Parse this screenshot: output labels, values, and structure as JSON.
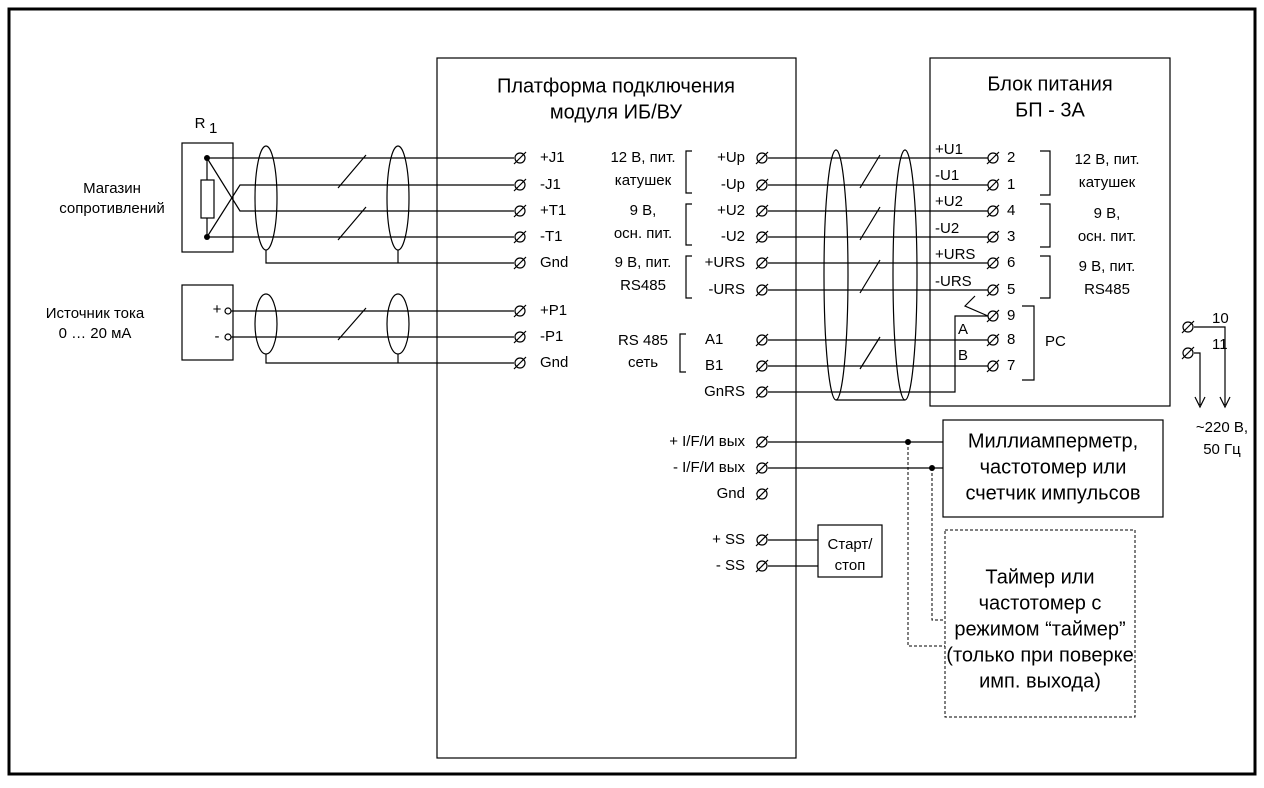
{
  "resistor_box": {
    "label": "R",
    "label_sub": "1",
    "caption": [
      "Магазин",
      "сопротивлений"
    ]
  },
  "current_source": {
    "caption": [
      "Источник тока",
      "0 … 20 мА"
    ],
    "plus": "+",
    "minus": "-"
  },
  "platform": {
    "title": [
      "Платформа подключения",
      "модуля ИБ/ВУ"
    ],
    "left_terminals": [
      "+J1",
      "-J1",
      "+T1",
      "-T1",
      "Gnd",
      "+P1",
      "-P1",
      "Gnd"
    ],
    "right_terminals": [
      "+Up",
      "-Up",
      "+U2",
      "-U2",
      "+URS",
      "-URS",
      "A1",
      "B1",
      "GnRS",
      "+ I/F/И вых",
      "- I/F/И вых",
      "Gnd",
      "+ SS",
      "- SS"
    ],
    "groups": [
      [
        "12 В, пит.",
        "катушек"
      ],
      [
        "9 В,",
        "осн. пит."
      ],
      [
        "9 В, пит.",
        "RS485"
      ],
      [
        "RS 485",
        "сеть"
      ]
    ]
  },
  "start_stop": [
    "Старт/",
    "стоп"
  ],
  "power_unit": {
    "title": [
      "Блок питания",
      "БП - 3А"
    ],
    "wire_labels": [
      "+U1",
      "-U1",
      "+U2",
      "-U2",
      "+URS",
      "-URS",
      "A",
      "B"
    ],
    "terminals": [
      "2",
      "1",
      "4",
      "3",
      "6",
      "5",
      "9",
      "8",
      "7"
    ],
    "groups": [
      [
        "12 В, пит.",
        "катушек"
      ],
      [
        "9 В,",
        "осн. пит."
      ],
      [
        "9 В, пит.",
        "RS485"
      ]
    ],
    "pc": "PC",
    "mains_terminals": [
      "10",
      "11"
    ],
    "mains": [
      "~220 В,",
      "50 Гц"
    ]
  },
  "meter": [
    "Миллиамперметр,",
    "частотомер или",
    "счетчик импульсов"
  ],
  "timer": [
    "Таймер или",
    "частотомер с",
    "режимом “таймер”",
    "(только при поверке",
    "имп. выхода)"
  ]
}
